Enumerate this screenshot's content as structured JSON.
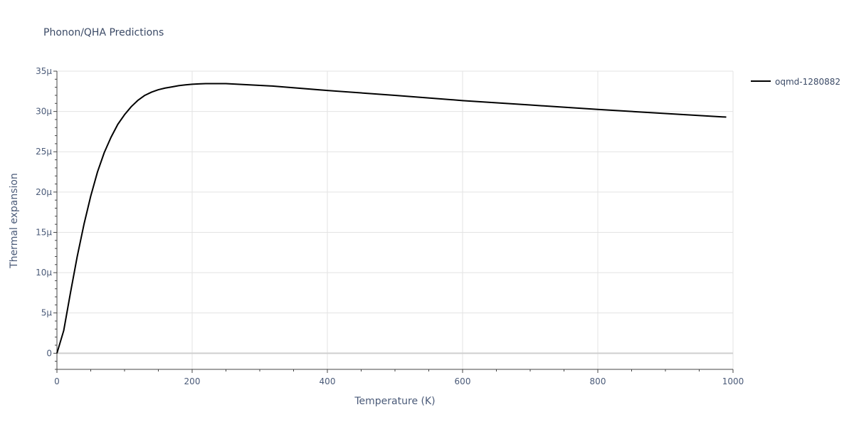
{
  "chart_data": {
    "type": "line",
    "title": "Phonon/QHA Predictions",
    "xlabel": "Temperature (K)",
    "ylabel": "Thermal expansion",
    "xlim": [
      0,
      1000
    ],
    "ylim": [
      -2,
      35
    ],
    "x_ticks": [
      0,
      200,
      400,
      600,
      800,
      1000
    ],
    "x_tick_labels": [
      "0",
      "200",
      "400",
      "600",
      "800",
      "1000"
    ],
    "y_ticks": [
      0,
      5,
      10,
      15,
      20,
      25,
      30,
      35
    ],
    "y_tick_labels": [
      "0",
      "5μ",
      "10μ",
      "15μ",
      "20μ",
      "25μ",
      "30μ",
      "35μ"
    ],
    "y_unit_scale": "μ (×1e-6)",
    "grid": true,
    "legend_position": "top-right",
    "series": [
      {
        "name": "oqmd-1280882",
        "color": "#000000",
        "x": [
          0,
          10,
          20,
          30,
          40,
          50,
          60,
          70,
          80,
          90,
          100,
          110,
          120,
          130,
          140,
          150,
          160,
          170,
          180,
          190,
          200,
          210,
          220,
          250,
          320,
          400,
          500,
          600,
          700,
          800,
          900,
          990
        ],
        "y": [
          0,
          2.8,
          7.5,
          12.0,
          16.0,
          19.5,
          22.5,
          24.9,
          26.8,
          28.4,
          29.6,
          30.6,
          31.4,
          32.0,
          32.4,
          32.7,
          32.9,
          33.05,
          33.2,
          33.3,
          33.38,
          33.42,
          33.45,
          33.45,
          33.15,
          32.6,
          32.0,
          31.35,
          30.8,
          30.25,
          29.75,
          29.3
        ]
      }
    ]
  }
}
